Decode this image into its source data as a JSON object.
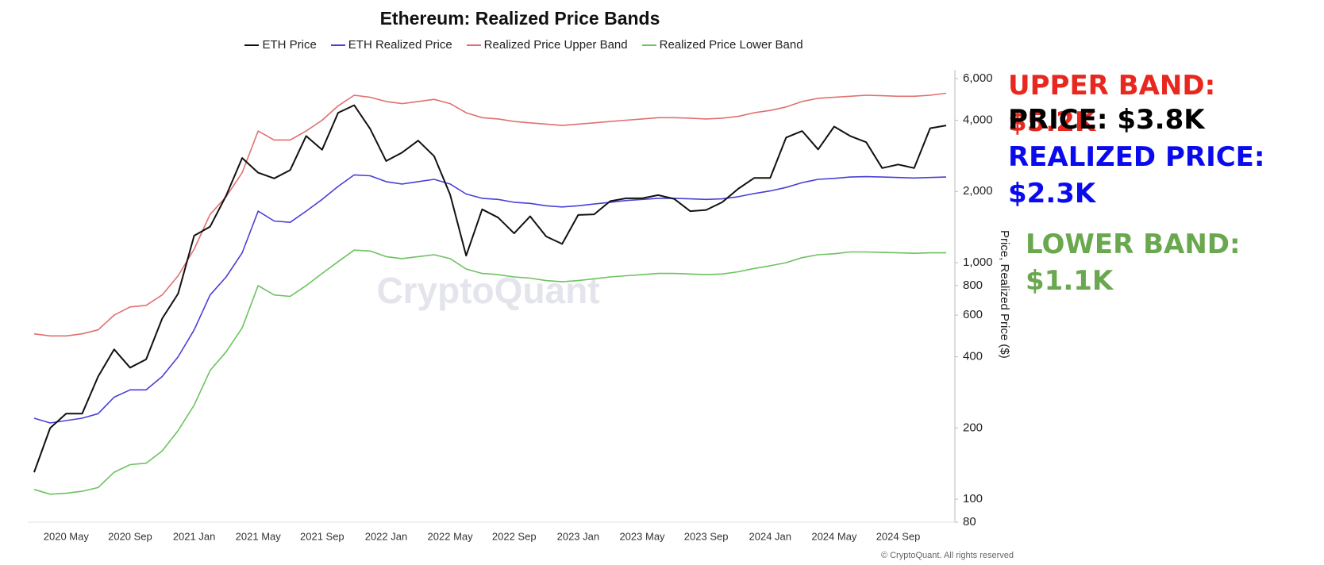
{
  "chart_data": {
    "type": "line",
    "title": "Ethereum: Realized Price Bands",
    "y_label": "Price, Realized Price ($)",
    "watermark": "CryptoQuant",
    "copyright": "© CryptoQuant. All rights reserved",
    "log_scale": true,
    "grid": false,
    "x": [
      "2020 Mar",
      "2020 Apr",
      "2020 May",
      "2020 Jun",
      "2020 Jul",
      "2020 Aug",
      "2020 Sep",
      "2020 Oct",
      "2020 Nov",
      "2020 Dec",
      "2021 Jan",
      "2021 Feb",
      "2021 Mar",
      "2021 Apr",
      "2021 May",
      "2021 Jun",
      "2021 Jul",
      "2021 Aug",
      "2021 Sep",
      "2021 Oct",
      "2021 Nov",
      "2021 Dec",
      "2022 Jan",
      "2022 Feb",
      "2022 Mar",
      "2022 Apr",
      "2022 May",
      "2022 Jun",
      "2022 Jul",
      "2022 Aug",
      "2022 Sep",
      "2022 Oct",
      "2022 Nov",
      "2022 Dec",
      "2023 Jan",
      "2023 Feb",
      "2023 Mar",
      "2023 Apr",
      "2023 May",
      "2023 Jun",
      "2023 Jul",
      "2023 Aug",
      "2023 Sep",
      "2023 Oct",
      "2023 Nov",
      "2023 Dec",
      "2024 Jan",
      "2024 Feb",
      "2024 Mar",
      "2024 Apr",
      "2024 May",
      "2024 Jun",
      "2024 Jul",
      "2024 Aug",
      "2024 Sep",
      "2024 Oct",
      "2024 Nov",
      "2024 Dec"
    ],
    "xticks": [
      "2020 May",
      "2020 Sep",
      "2021 Jan",
      "2021 May",
      "2021 Sep",
      "2022 Jan",
      "2022 May",
      "2022 Sep",
      "2023 Jan",
      "2023 May",
      "2023 Sep",
      "2024 Jan",
      "2024 May",
      "2024 Sep"
    ],
    "ylim": [
      80,
      6000
    ],
    "yticks": [
      80,
      100,
      200,
      400,
      600,
      800,
      {
        "value": 1000,
        "label": "1,000"
      },
      {
        "value": 2000,
        "label": "2,000"
      },
      {
        "value": 4000,
        "label": "4,000"
      },
      {
        "value": 6000,
        "label": "6,000"
      }
    ],
    "series": [
      {
        "name": "ETH Price",
        "color": "#111111",
        "values": [
          130,
          200,
          230,
          230,
          330,
          430,
          360,
          390,
          580,
          740,
          1300,
          1420,
          1920,
          2770,
          2400,
          2270,
          2460,
          3430,
          3000,
          4300,
          4630,
          3680,
          2690,
          2920,
          3280,
          2820,
          1940,
          1070,
          1680,
          1550,
          1330,
          1570,
          1290,
          1200,
          1590,
          1600,
          1820,
          1870,
          1870,
          1930,
          1860,
          1650,
          1670,
          1800,
          2050,
          2280,
          2280,
          3380,
          3600,
          3010,
          3760,
          3430,
          3230,
          2510,
          2600,
          2510,
          3700,
          3800
        ]
      },
      {
        "name": "ETH Realized Price",
        "color": "#4a3fd6",
        "values": [
          220,
          210,
          215,
          220,
          230,
          270,
          290,
          290,
          330,
          400,
          520,
          730,
          870,
          1100,
          1650,
          1500,
          1480,
          1650,
          1850,
          2100,
          2350,
          2330,
          2200,
          2150,
          2200,
          2250,
          2150,
          1950,
          1870,
          1850,
          1800,
          1780,
          1740,
          1720,
          1740,
          1770,
          1800,
          1830,
          1850,
          1870,
          1870,
          1860,
          1850,
          1860,
          1900,
          1960,
          2010,
          2080,
          2180,
          2250,
          2270,
          2300,
          2310,
          2300,
          2290,
          2280,
          2290,
          2300
        ]
      },
      {
        "name": "Realized Price Upper Band",
        "color": "#e07070",
        "values": [
          500,
          490,
          490,
          500,
          520,
          600,
          650,
          660,
          730,
          880,
          1140,
          1600,
          1900,
          2400,
          3600,
          3300,
          3300,
          3600,
          4000,
          4600,
          5100,
          5000,
          4800,
          4700,
          4800,
          4900,
          4700,
          4300,
          4100,
          4050,
          3950,
          3900,
          3850,
          3800,
          3850,
          3900,
          3950,
          4000,
          4050,
          4100,
          4100,
          4080,
          4050,
          4080,
          4150,
          4300,
          4400,
          4550,
          4800,
          4950,
          5000,
          5050,
          5100,
          5080,
          5050,
          5050,
          5100,
          5200
        ]
      },
      {
        "name": "Realized Price Lower Band",
        "color": "#6cc35f",
        "values": [
          110,
          105,
          106,
          108,
          112,
          130,
          140,
          142,
          160,
          195,
          250,
          350,
          420,
          530,
          800,
          730,
          720,
          800,
          900,
          1010,
          1130,
          1120,
          1060,
          1040,
          1060,
          1080,
          1040,
          940,
          900,
          890,
          870,
          860,
          840,
          830,
          840,
          855,
          870,
          880,
          890,
          900,
          900,
          895,
          890,
          895,
          915,
          945,
          970,
          1000,
          1050,
          1080,
          1090,
          1110,
          1110,
          1105,
          1100,
          1095,
          1100,
          1100
        ]
      }
    ],
    "annotations": [
      {
        "text": "UPPER BAND: $5.2K",
        "color": "#e8281e"
      },
      {
        "text": "PRICE: $3.8K",
        "color": "#000000"
      },
      {
        "text": "REALIZED PRICE: $2.3K",
        "color": "#0a0aee"
      },
      {
        "text": "LOWER BAND: $1.1K",
        "color": "#6aa84f"
      }
    ]
  }
}
